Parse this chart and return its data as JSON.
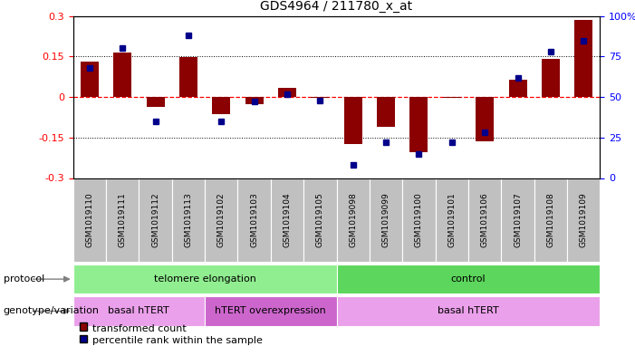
{
  "title": "GDS4964 / 211780_x_at",
  "samples": [
    "GSM1019110",
    "GSM1019111",
    "GSM1019112",
    "GSM1019113",
    "GSM1019102",
    "GSM1019103",
    "GSM1019104",
    "GSM1019105",
    "GSM1019098",
    "GSM1019099",
    "GSM1019100",
    "GSM1019101",
    "GSM1019106",
    "GSM1019107",
    "GSM1019108",
    "GSM1019109"
  ],
  "bar_values": [
    0.13,
    0.165,
    -0.035,
    0.148,
    -0.065,
    -0.025,
    0.035,
    -0.003,
    -0.175,
    -0.112,
    -0.205,
    -0.003,
    -0.165,
    0.065,
    0.14,
    0.285
  ],
  "dot_percentiles": [
    68,
    80,
    35,
    88,
    35,
    47,
    52,
    48,
    8,
    22,
    15,
    22,
    28,
    62,
    78,
    85
  ],
  "ylim": [
    -0.3,
    0.3
  ],
  "yticks_left": [
    -0.3,
    -0.15,
    0,
    0.15,
    0.3
  ],
  "yticks_right": [
    0,
    25,
    50,
    75,
    100
  ],
  "bar_color": "#8B0000",
  "dot_color": "#00008B",
  "hline_color": "red",
  "grid_color": "black",
  "bar_width": 0.55,
  "protocol_groups": [
    {
      "label": "telomere elongation",
      "start": 0,
      "end": 8,
      "color": "#90EE90"
    },
    {
      "label": "control",
      "start": 8,
      "end": 16,
      "color": "#5CD65C"
    }
  ],
  "genotype_groups": [
    {
      "label": "basal hTERT",
      "start": 0,
      "end": 4,
      "color": "#EAA0EA"
    },
    {
      "label": "hTERT overexpression",
      "start": 4,
      "end": 8,
      "color": "#CC66CC"
    },
    {
      "label": "basal hTERT",
      "start": 8,
      "end": 16,
      "color": "#EAA0EA"
    }
  ],
  "legend_items": [
    {
      "label": "transformed count",
      "color": "#8B0000",
      "marker": "s"
    },
    {
      "label": "percentile rank within the sample",
      "color": "#00008B",
      "marker": "s"
    }
  ],
  "label_fontsize": 8,
  "tick_fontsize": 8,
  "title_fontsize": 10
}
